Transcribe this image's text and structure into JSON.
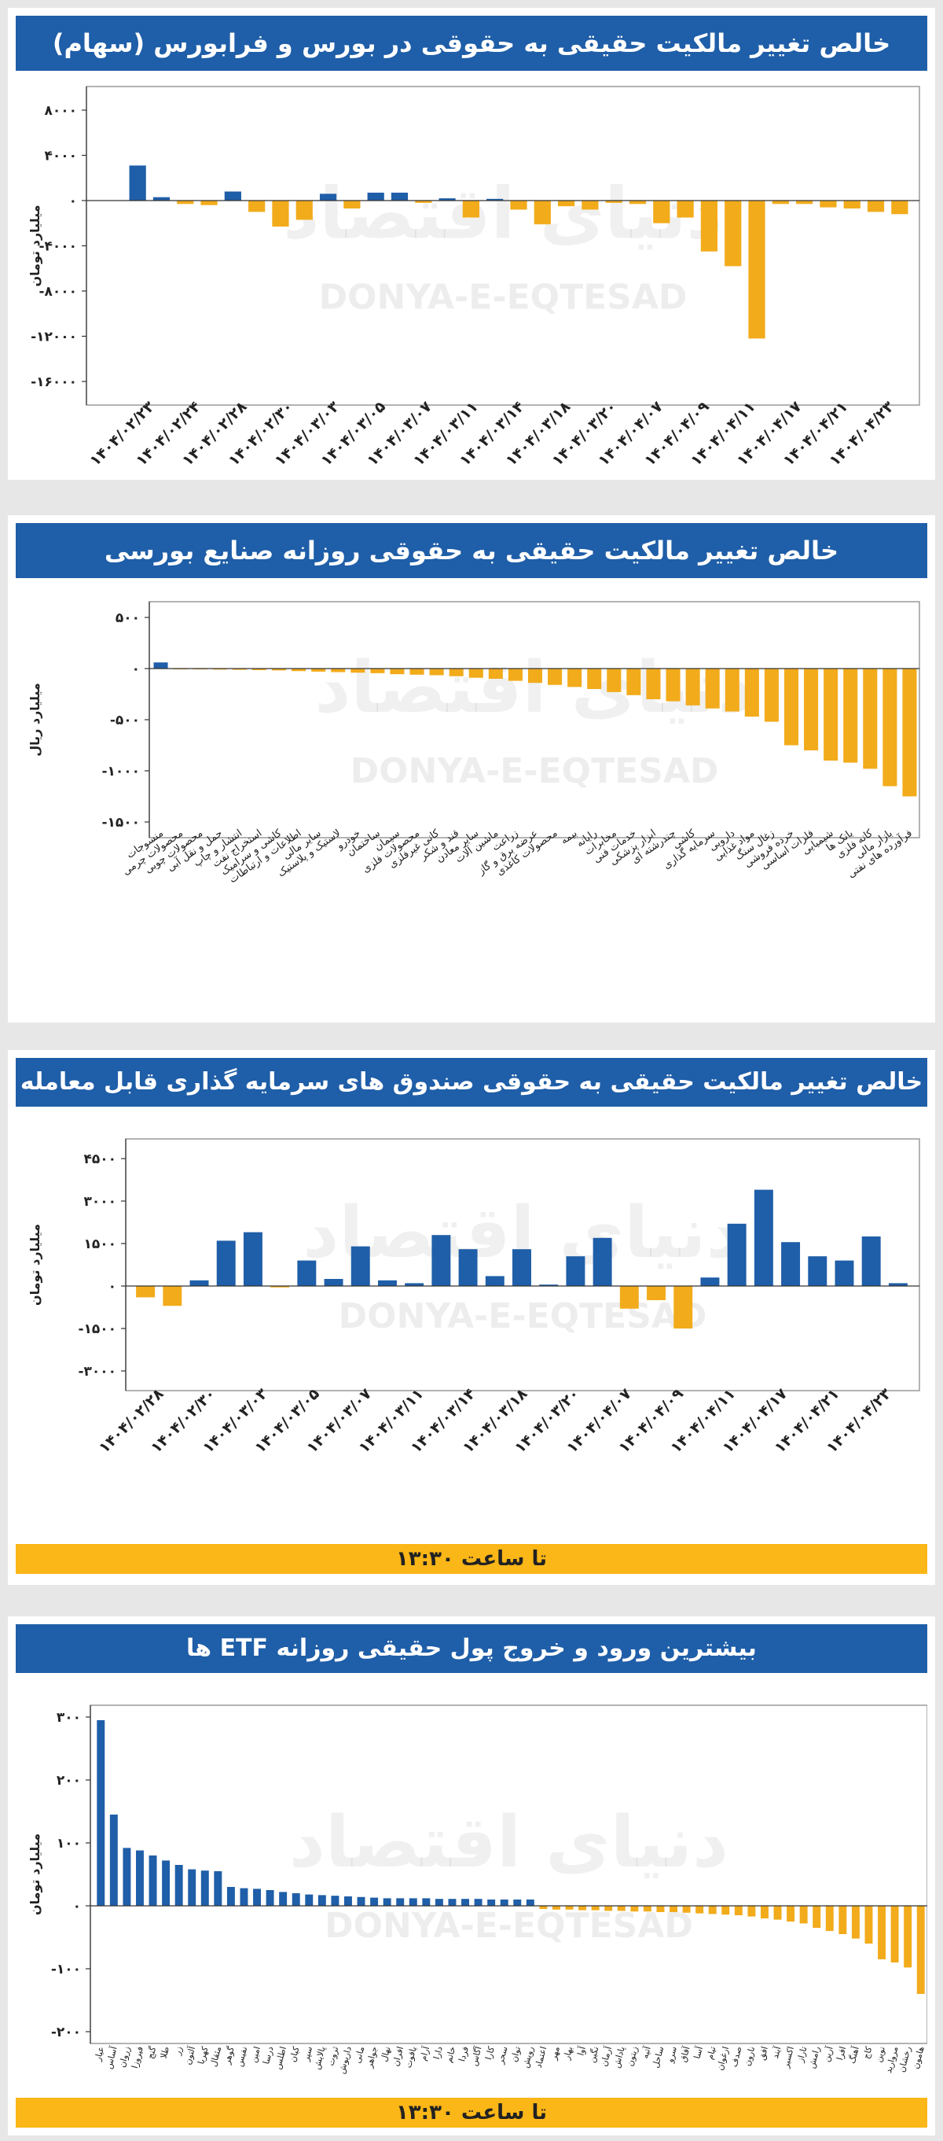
{
  "colors": {
    "positive": "#1f5ea8",
    "negative": "#f2ab1b",
    "title_bg": "#1f5ea8",
    "footer_bg": "#fbb617",
    "axis": "#333333",
    "plot_border": "#9a9a9a"
  },
  "watermark": {
    "brand_fa": "دنیای اقتصاد",
    "brand_en": "DONYA-E-EQTESAD"
  },
  "chart_data": [
    {
      "type": "bar",
      "title": "خالص تغییر مالکیت حقیقی به حقوقی در بورس و فرابورس (سهام)",
      "ylabel": "میلیارد تومان",
      "ylim": [
        -16000,
        8000
      ],
      "yticks": [
        8000,
        4000,
        0,
        -4000,
        -8000,
        -12000,
        -16000
      ],
      "ytick_labels": [
        "۸۰۰۰",
        "۴۰۰۰",
        "۰",
        "-۴۰۰۰",
        "-۸۰۰۰",
        "-۱۲۰۰۰",
        "-۱۶۰۰۰"
      ],
      "values": [
        3100,
        300,
        -300,
        -400,
        800,
        -1000,
        -2300,
        -1700,
        600,
        -700,
        700,
        700,
        -200,
        200,
        -1500,
        150,
        -800,
        -2100,
        -500,
        -800,
        -200,
        -300,
        -2000,
        -1500,
        -4500,
        -5800,
        -12200,
        -300,
        -300,
        -600,
        -700,
        -1000,
        -1200
      ],
      "xtick_labels": [
        "۱۴۰۴/۰۲/۲۳",
        "۱۴۰۴/۰۲/۲۴",
        "۱۴۰۴/۰۲/۲۸",
        "۱۴۰۴/۰۲/۳۰",
        "۱۴۰۴/۰۳/۰۳",
        "۱۴۰۴/۰۳/۰۵",
        "۱۴۰۴/۰۳/۰۷",
        "۱۴۰۴/۰۳/۱۱",
        "۱۴۰۴/۰۳/۱۴",
        "۱۴۰۴/۰۳/۱۸",
        "۱۴۰۴/۰۳/۲۰",
        "۱۴۰۴/۰۴/۰۷",
        "۱۴۰۴/۰۴/۰۹",
        "۱۴۰۴/۰۴/۱۱",
        "۱۴۰۴/۰۴/۱۷",
        "۱۴۰۴/۰۴/۲۱",
        "۱۴۰۴/۰۴/۲۳"
      ]
    },
    {
      "type": "bar",
      "title": "خالص تغییر مالکیت حقیقی به حقوقی روزانه صنایع بورسی",
      "ylabel": "میلیارد ریال",
      "ylim": [
        -1500,
        500
      ],
      "yticks": [
        500,
        0,
        -500,
        -1000,
        -1500
      ],
      "ytick_labels": [
        "۵۰۰",
        "۰",
        "-۵۰۰",
        "-۱۰۰۰",
        "-۱۵۰۰"
      ],
      "categories": [
        "منسوجات",
        "محصولات چرمی",
        "محصولات چوبی",
        "حمل و نقل آبی",
        "انتشار و چاپ",
        "استخراج نفت",
        "کاشی و سرامیک",
        "اطلاعات و ارتباطات",
        "سایر مالی",
        "لاستیک و پلاستیک",
        "خودرو",
        "ساختمان",
        "سیمان",
        "محصولات فلزی",
        "کانی غیرفلزی",
        "قند و شکر",
        "سایر معادن",
        "ماشین آلات",
        "زراعت",
        "عرضه برق و گاز",
        "محصولات کاغذی",
        "بیمه",
        "رایانه",
        "مخابرات",
        "خدمات فنی",
        "ابزار پزشکی",
        "چندرشته ای",
        "کاشی",
        "سرمایه گذاری",
        "دارویی",
        "مواد غذایی",
        "زغال سنگ",
        "خرده فروشی",
        "فلزات اساسی",
        "شیمیایی",
        "بانک ها",
        "کانه فلزی",
        "بازار مالی",
        "فرآورده های نفتی"
      ],
      "values": [
        60,
        -5,
        -8,
        -10,
        -12,
        -15,
        -18,
        -25,
        -30,
        -35,
        -40,
        -45,
        -55,
        -60,
        -65,
        -75,
        -90,
        -100,
        -120,
        -140,
        -160,
        -180,
        -200,
        -230,
        -260,
        -300,
        -320,
        -360,
        -390,
        -420,
        -470,
        -520,
        -750,
        -800,
        -900,
        -920,
        -980,
        -1150,
        -1250
      ]
    },
    {
      "type": "bar",
      "title": "خالص تغییر مالکیت حقیقی به حقوقی صندوق های سرمایه گذاری قابل معامله (ETF)",
      "ylabel": "میلیارد تومان",
      "ylim": [
        -3000,
        4500
      ],
      "yticks": [
        4500,
        3000,
        1500,
        0,
        -1500,
        -3000
      ],
      "ytick_labels": [
        "۴۵۰۰",
        "۳۰۰۰",
        "۱۵۰۰",
        "۰",
        "-۱۵۰۰",
        "-۳۰۰۰"
      ],
      "values": [
        -400,
        -700,
        200,
        1600,
        1900,
        -50,
        900,
        250,
        1400,
        200,
        100,
        1800,
        1300,
        350,
        1300,
        50,
        1050,
        1700,
        -800,
        -500,
        -1500,
        300,
        2200,
        3400,
        1550,
        1050,
        900,
        1750,
        100
      ],
      "xtick_labels": [
        "۱۴۰۴/۰۲/۲۸",
        "۱۴۰۴/۰۲/۳۰",
        "۱۴۰۴/۰۳/۰۳",
        "۱۴۰۴/۰۳/۰۵",
        "۱۴۰۴/۰۳/۰۷",
        "۱۴۰۴/۰۳/۱۱",
        "۱۴۰۴/۰۳/۱۴",
        "۱۴۰۴/۰۳/۱۸",
        "۱۴۰۴/۰۳/۲۰",
        "۱۴۰۴/۰۴/۰۷",
        "۱۴۰۴/۰۴/۰۹",
        "۱۴۰۴/۰۴/۱۱",
        "۱۴۰۴/۰۴/۱۷",
        "۱۴۰۴/۰۴/۲۱",
        "۱۴۰۴/۰۴/۲۳"
      ],
      "footer": "تا ساعت ۱۳:۳۰"
    },
    {
      "type": "bar",
      "title": "بیشترین ورود و خروج پول حقیقی روزانه ETF ها",
      "ylabel": "میلیارد تومان",
      "ylim": [
        -200,
        300
      ],
      "yticks": [
        300,
        200,
        100,
        0,
        -100,
        -200
      ],
      "ytick_labels": [
        "۳۰۰",
        "۲۰۰",
        "۱۰۰",
        "۰",
        "-۱۰۰",
        "-۲۰۰"
      ],
      "categories": [
        "عیار",
        "آساس",
        "زروان",
        "فیروزا",
        "گنج",
        "طلا",
        "زر",
        "آلتون",
        "کهربا",
        "مثقال",
        "گوهر",
        "نفیس",
        "امین",
        "درسا",
        "اطلس",
        "کیان",
        "سپر",
        "پالایش",
        "ثروت",
        "داریوش",
        "مانی",
        "جواهر",
        "نهال",
        "افران",
        "یاقوت",
        "آرام",
        "دارا",
        "خاتم",
        "فردا",
        "آگاس",
        "کارا",
        "سحر",
        "توان",
        "رویش",
        "اعتماد",
        "مهر",
        "بهار",
        "آوا",
        "نگین",
        "آرمان",
        "پاداش",
        "زیتون",
        "آتیه",
        "ساحل",
        "سرو",
        "آفاق",
        "آسا",
        "تیام",
        "ارغوان",
        "صدف",
        "نارون",
        "افق",
        "آیند",
        "اکسیر",
        "تاراز",
        "رامش",
        "آرین",
        "افرا",
        "آهنگ",
        "کاج",
        "نوین",
        "مروارید",
        "رخشان",
        "هامون"
      ],
      "values": [
        295,
        145,
        92,
        88,
        80,
        72,
        65,
        58,
        56,
        55,
        30,
        28,
        27,
        25,
        22,
        20,
        18,
        17,
        16,
        15,
        14,
        13,
        12,
        12,
        12,
        12,
        11,
        11,
        11,
        11,
        10,
        10,
        10,
        10,
        -5,
        -6,
        -6,
        -7,
        -7,
        -8,
        -8,
        -9,
        -9,
        -10,
        -10,
        -11,
        -12,
        -13,
        -14,
        -15,
        -17,
        -20,
        -22,
        -25,
        -28,
        -35,
        -40,
        -45,
        -52,
        -60,
        -85,
        -90,
        -98,
        -140
      ],
      "footer": "تا ساعت ۱۳:۳۰"
    }
  ]
}
